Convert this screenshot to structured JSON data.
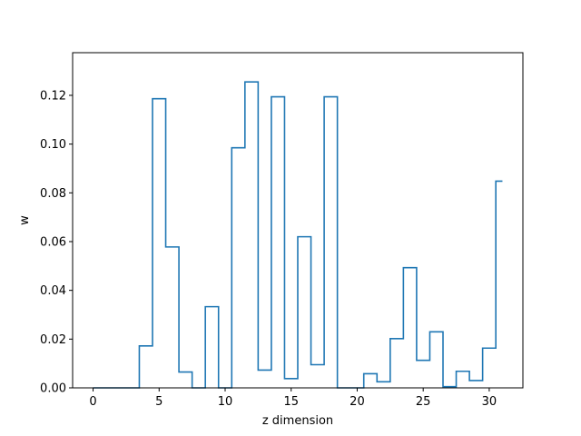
{
  "chart_data": {
    "type": "line",
    "drawstyle": "steps-mid",
    "title": "",
    "xlabel": "z dimension",
    "ylabel": "w",
    "xlim": [
      -1.55,
      32.55
    ],
    "ylim": [
      0,
      0.1375
    ],
    "xticks": [
      0,
      5,
      10,
      15,
      20,
      25,
      30
    ],
    "yticks": [
      0.0,
      0.02,
      0.04,
      0.06,
      0.08,
      0.1,
      0.12
    ],
    "ytick_labels": [
      "0.00",
      "0.02",
      "0.04",
      "0.06",
      "0.08",
      "0.10",
      "0.12"
    ],
    "grid": false,
    "series": [
      {
        "color": "#1f77b4",
        "x": [
          0,
          1,
          2,
          3,
          4,
          5,
          6,
          7,
          8,
          9,
          10,
          11,
          12,
          13,
          14,
          15,
          16,
          17,
          18,
          19,
          20,
          21,
          22,
          23,
          24,
          25,
          26,
          27,
          28,
          29,
          30,
          31
        ],
        "y": [
          0,
          0,
          0,
          0,
          0.0172,
          0.1186,
          0.0578,
          0.0065,
          0,
          0.0333,
          0,
          0.0985,
          0.1255,
          0.0073,
          0.1194,
          0.0038,
          0.062,
          0.0095,
          0.1194,
          0,
          0,
          0.0058,
          0.0025,
          0.0202,
          0.0493,
          0.0113,
          0.023,
          0.0005,
          0.0068,
          0.003,
          0.0163,
          0.0848
        ]
      }
    ]
  }
}
